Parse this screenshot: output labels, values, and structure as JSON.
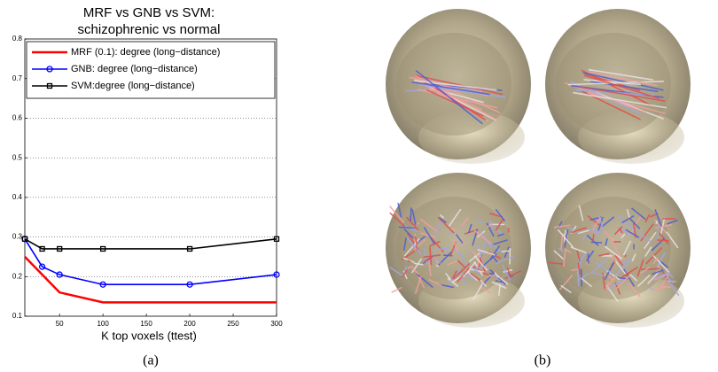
{
  "chart_data": {
    "type": "line",
    "title": [
      "MRF vs GNB vs SVM:",
      "schizophrenic vs normal"
    ],
    "x_label": "K top voxels (ttest)",
    "x": [
      10,
      30,
      50,
      100,
      200,
      300
    ],
    "series": [
      {
        "name": "MRF (0.1): degree (long−distance)",
        "color": "#ff0000",
        "marker": "none",
        "values": [
          0.25,
          0.205,
          0.16,
          0.135,
          0.135,
          0.135
        ]
      },
      {
        "name": "GNB: degree (long−distance)",
        "color": "#0000ff",
        "marker": "circle",
        "values": [
          0.295,
          0.225,
          0.205,
          0.18,
          0.18,
          0.205
        ]
      },
      {
        "name": "SVM:degree (long−distance)",
        "color": "#000000",
        "marker": "square",
        "values": [
          0.295,
          0.27,
          0.27,
          0.27,
          0.27,
          0.295
        ]
      }
    ],
    "xlim": [
      10,
      300
    ],
    "xticks": [
      50,
      100,
      150,
      200,
      250,
      300
    ],
    "ylim": [
      0.1,
      0.8
    ],
    "yticks": [
      0.1,
      0.2,
      0.3,
      0.4,
      0.5,
      0.6,
      0.7,
      0.8
    ],
    "grid": true,
    "legend": "upper right"
  },
  "captions": [
    "(a)",
    "(b)"
  ]
}
